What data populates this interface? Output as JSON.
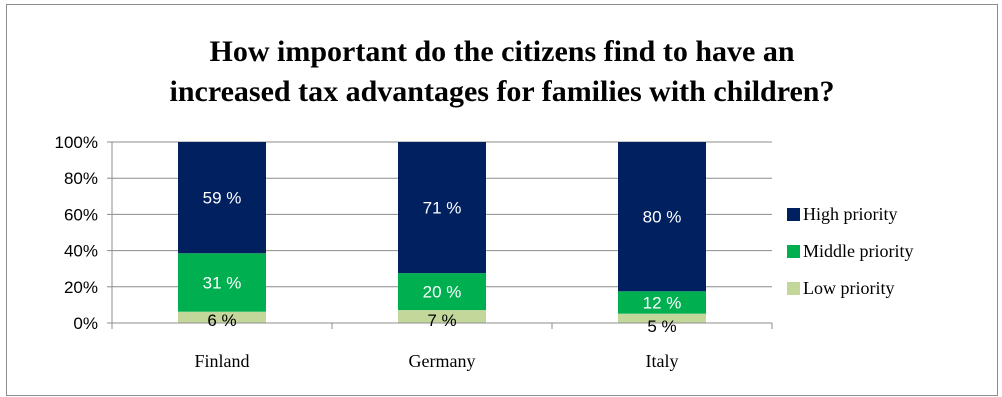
{
  "chart_data": {
    "type": "bar",
    "stacked": true,
    "normalized_percent": true,
    "title_lines": [
      "How important do the citizens find to have an",
      "increased tax advantages for families with children?"
    ],
    "categories": [
      "Finland",
      "Germany",
      "Italy"
    ],
    "series": [
      {
        "name": "Low priority",
        "values": [
          6,
          7,
          5
        ],
        "labels": [
          "6 %",
          "7 %",
          "5 %"
        ],
        "color": "#c4d79b",
        "label_color": "#000000"
      },
      {
        "name": "Middle priority",
        "values": [
          31,
          20,
          12
        ],
        "labels": [
          "31 %",
          "20 %",
          "12 %"
        ],
        "color": "#00b050",
        "label_color": "#ffffff"
      },
      {
        "name": "High priority",
        "values": [
          59,
          71,
          80
        ],
        "labels": [
          "59 %",
          "71 %",
          "80 %"
        ],
        "color": "#002060",
        "label_color": "#ffffff"
      }
    ],
    "y_ticks": [
      "0%",
      "20%",
      "40%",
      "60%",
      "80%",
      "100%"
    ],
    "ylim": [
      0,
      100
    ],
    "grid": true,
    "legend_position": "right",
    "legend_order": [
      "High priority",
      "Middle priority",
      "Low priority"
    ]
  }
}
